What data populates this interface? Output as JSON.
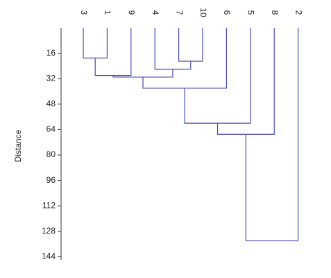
{
  "chart_data": {
    "type": "dendrogram",
    "y_label": "Distance",
    "leaves": [
      "3",
      "1",
      "9",
      "4",
      "7",
      "10",
      "6",
      "5",
      "8",
      "2"
    ],
    "merges": [
      {
        "children": [
          0,
          1
        ],
        "height": 19
      },
      {
        "children": [
          4,
          5
        ],
        "height": 21
      },
      {
        "children": [
          10,
          2
        ],
        "height": 30
      },
      {
        "children": [
          3,
          11
        ],
        "height": 26
      },
      {
        "children": [
          12,
          13
        ],
        "height": 31
      },
      {
        "children": [
          14,
          6
        ],
        "height": 38
      },
      {
        "children": [
          15,
          7
        ],
        "height": 60
      },
      {
        "children": [
          16,
          8
        ],
        "height": 67
      },
      {
        "children": [
          17,
          9
        ],
        "height": 134
      }
    ],
    "color": "#4848b4",
    "ylim": [
      0,
      146
    ],
    "yticks": [
      16,
      32,
      48,
      64,
      80,
      96,
      112,
      128,
      144
    ]
  }
}
